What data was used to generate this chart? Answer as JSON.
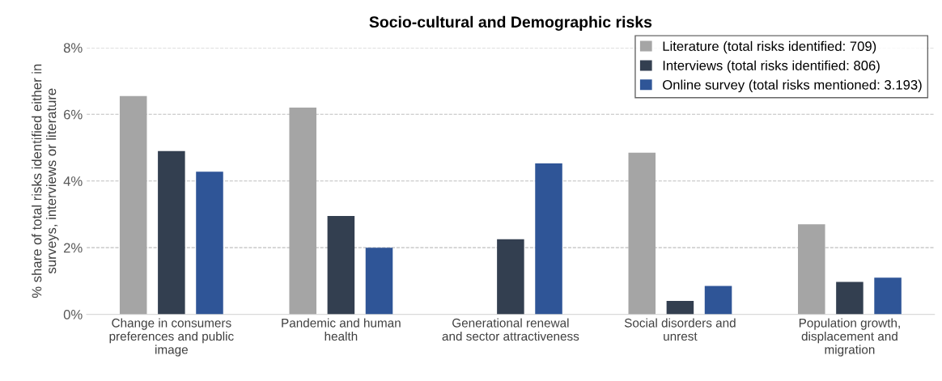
{
  "chart_data": {
    "type": "bar",
    "title": "Socio-cultural and Demographic risks",
    "ylabel": "% share of total risks identified either in\nsurveys, interviews or literature",
    "categories": [
      "Change in consumers\npreferences and public\nimage",
      "Pandemic and human\nhealth",
      "Generational renewal\nand sector attractiveness",
      "Social disorders and\nunrest",
      "Population growth,\ndisplacement and\nmigration"
    ],
    "series": [
      {
        "name": "Literature (total risks identified: 709)",
        "color": "#a5a5a5",
        "values": [
          6.55,
          6.2,
          null,
          4.85,
          2.7
        ]
      },
      {
        "name": "Interviews (total risks identified: 806)",
        "color": "#333f50",
        "values": [
          4.9,
          2.95,
          2.25,
          0.4,
          0.97
        ]
      },
      {
        "name": "Online survey (total risks mentioned: 3.193)",
        "color": "#2f5597",
        "values": [
          4.28,
          2.0,
          4.53,
          0.85,
          1.1
        ]
      }
    ],
    "ylim": [
      0,
      8
    ],
    "yticks": [
      {
        "value": 0,
        "label": "0%"
      },
      {
        "value": 2,
        "label": "2%"
      },
      {
        "value": 4,
        "label": "4%"
      },
      {
        "value": 6,
        "label": "6%"
      },
      {
        "value": 8,
        "label": "8%"
      }
    ],
    "grid": "y",
    "legend": "top right"
  }
}
